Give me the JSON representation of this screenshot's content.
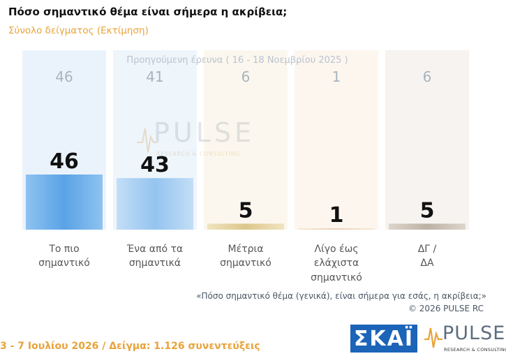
{
  "header": {
    "title": "Πόσο σημαντικό θέμα είναι σήμερα η ακρίβεια;",
    "subtitle": "Σύνολο δείγματος (Εκτίμηση)"
  },
  "chart_data": {
    "type": "bar",
    "previous_survey_caption": "Προηγούμενη έρευνα ( 16 - 18 Νοεμβρίου 2025 )",
    "categories": [
      [
        "Το πιο",
        "σημαντικό"
      ],
      [
        "Ένα από τα",
        "σημαντικά"
      ],
      [
        "Μέτρια",
        "σημαντικό"
      ],
      [
        "Λίγο έως",
        "ελάχιστα",
        "σημαντικό"
      ],
      [
        "ΔΓ /",
        "ΔΑ"
      ]
    ],
    "series": [
      {
        "values": [
          46,
          43,
          5,
          1,
          5
        ]
      },
      {
        "values": [
          46,
          41,
          6,
          1,
          6
        ]
      }
    ],
    "colors": {
      "bars": [
        "#6aaeea",
        "#a3cdf3",
        "#e2cf9a",
        "#efd8c0",
        "#c9bdb0"
      ],
      "previous_columns": [
        "#eaf3fb",
        "#eef5fb",
        "#fbf7ee",
        "#fcf6ef",
        "#f6f3f0"
      ],
      "current_label": "#111111",
      "previous_label": "#a9b3be"
    },
    "ylim": [
      0,
      50
    ]
  },
  "watermark": {
    "word": "PULSE",
    "sub": "RESEARCH & CONSULTING"
  },
  "notes": {
    "question": "«Πόσο σημαντικό θέμα (γενικά), είναι σήμερα για εσάς, η ακρίβεια;»",
    "copyright": "©  2026  PULSE RC"
  },
  "footer": {
    "text": "3 - 7  Ιουλίου 2026  /  Δείγμα:  1.126 συνεντεύξεις"
  },
  "logos": {
    "skai": "ΣΚΑΪ",
    "pulse": "PULSE",
    "pulse_sub": "RESEARCH & CONSULTING"
  }
}
